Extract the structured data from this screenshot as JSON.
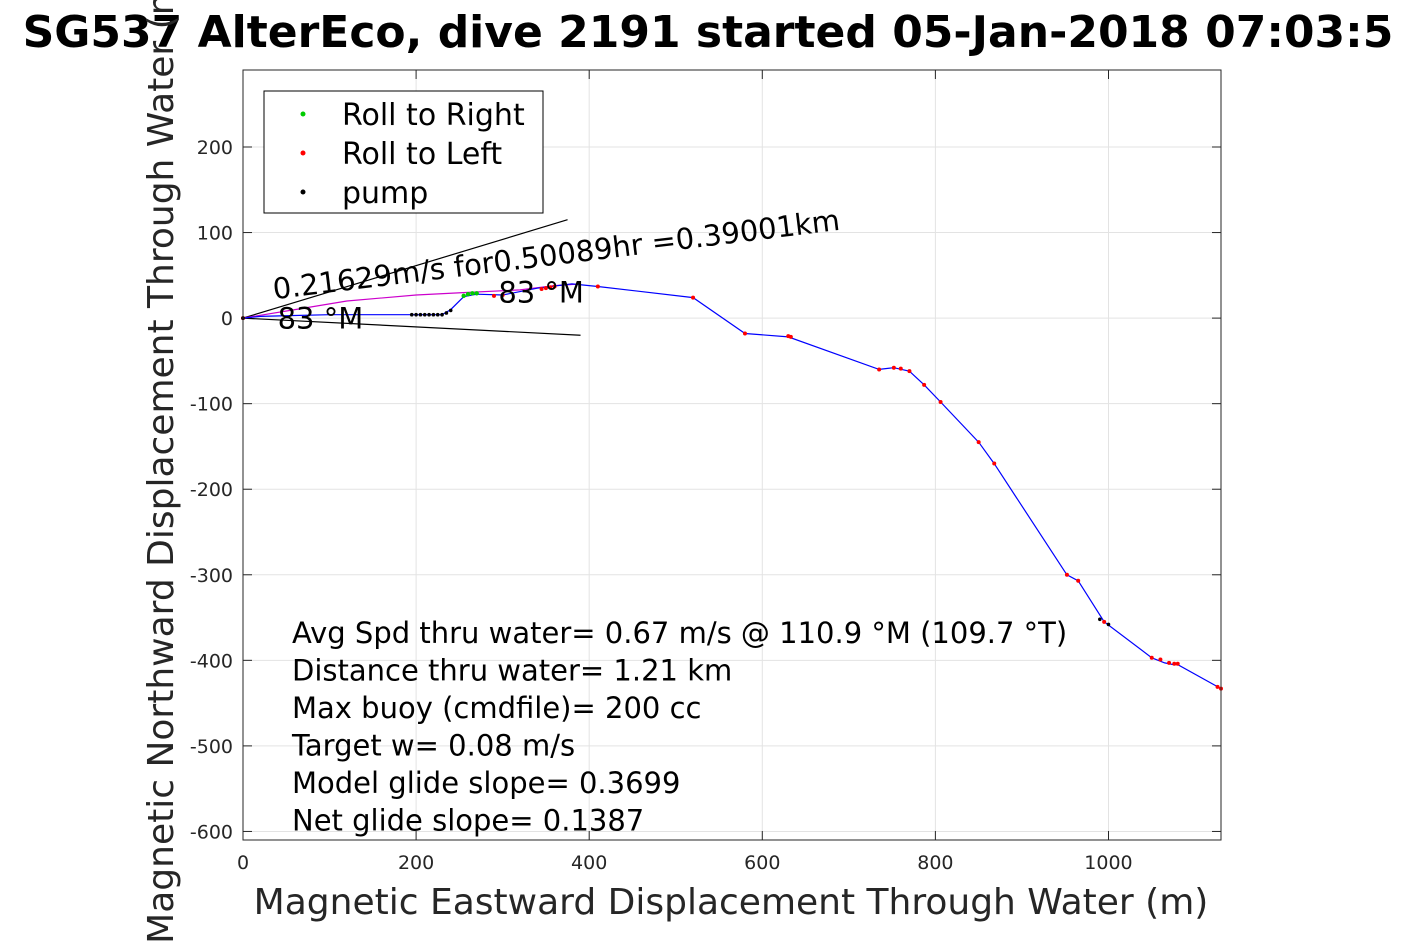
{
  "chart_data": {
    "type": "line",
    "title": "SG537 AlterEco, dive 2191 started 05-Jan-2018 07:03:5",
    "xlabel": "Magnetic Eastward Displacement Through Water (m)",
    "ylabel": "Magnetic Northward Displacement Through Water (m)",
    "xlim": [
      0,
      1130
    ],
    "ylim": [
      -610,
      290
    ],
    "xticks": [
      0,
      200,
      400,
      600,
      800,
      1000
    ],
    "yticks": [
      200,
      100,
      0,
      -100,
      -200,
      -300,
      -400,
      -500,
      -600
    ],
    "grid": true,
    "legend_position": "top-left",
    "legend": [
      {
        "label": "Roll to Right",
        "color": "#00cc00"
      },
      {
        "label": "Roll to Left",
        "color": "#ff0000"
      },
      {
        "label": "pump",
        "color": "#000000"
      }
    ],
    "track": {
      "name": "track",
      "color": "#0000ff",
      "x": [
        0,
        20,
        60,
        100,
        150,
        200,
        230,
        240,
        255,
        270,
        300,
        340,
        380,
        410,
        520,
        580,
        630,
        735,
        752,
        770,
        787,
        806,
        850,
        868,
        952,
        965,
        995,
        1050,
        1065,
        1075,
        1080,
        1130
      ],
      "y": [
        0,
        2,
        3,
        4,
        4,
        4,
        4,
        10,
        25,
        28,
        27,
        35,
        40,
        37,
        24,
        -18,
        -22,
        -60,
        -58,
        -62,
        -78,
        -98,
        -145,
        -170,
        -300,
        -307,
        -355,
        -397,
        -403,
        -405,
        -405,
        -433
      ]
    },
    "current_track": {
      "name": "current",
      "color": "#cc00cc",
      "x": [
        0,
        60,
        120,
        200,
        260,
        320,
        360,
        390
      ],
      "y": [
        0,
        10,
        20,
        27,
        30,
        33,
        38,
        40
      ]
    },
    "roll_right_points": {
      "x": [
        255,
        260,
        265,
        270
      ],
      "y": [
        26,
        28,
        29,
        29
      ]
    },
    "roll_left_points": {
      "x": [
        0,
        290,
        300,
        345,
        350,
        355,
        360,
        410,
        520,
        580,
        630,
        633,
        735,
        752,
        760,
        770,
        787,
        806,
        850,
        868,
        952,
        965,
        995,
        1050,
        1060,
        1070,
        1076,
        1080,
        1126,
        1130
      ],
      "y": [
        0,
        26,
        27,
        34,
        35,
        36,
        37,
        37,
        24,
        -18,
        -21,
        -22,
        -60,
        -58,
        -59,
        -62,
        -78,
        -98,
        -145,
        -170,
        -300,
        -307,
        -355,
        -397,
        -399,
        -403,
        -404,
        -404,
        -431,
        -433
      ]
    },
    "pump_points": {
      "x": [
        195,
        200,
        205,
        210,
        215,
        220,
        225,
        230,
        235,
        240,
        0,
        990,
        1000
      ],
      "y": [
        4,
        4,
        4,
        4,
        4,
        4,
        4,
        4,
        6,
        9,
        0,
        -352,
        -358
      ]
    },
    "cone_lines": [
      {
        "x": [
          0,
          375
        ],
        "y": [
          0,
          115
        ]
      },
      {
        "x": [
          0,
          390
        ],
        "y": [
          0,
          -20
        ]
      }
    ],
    "annotations": [
      {
        "text": "0.21629m/s for0.50089hr =0.39001km",
        "x": 36,
        "y": 22,
        "rotation_deg": -7
      },
      {
        "text": "83 °M",
        "x": 40,
        "y": -12,
        "rotation_deg": 0
      },
      {
        "text": "83 °M",
        "x": 295,
        "y": 18,
        "rotation_deg": 0
      }
    ],
    "stats": [
      "Avg Spd thru water=  0.67 m/s @ 110.9 °M (109.7 °T)",
      "Distance thru water=  1.21 km",
      "Max buoy (cmdfile)= 200 cc",
      "Target w= 0.08 m/s",
      "Model glide slope= 0.3699",
      "Net glide slope= 0.1387"
    ]
  }
}
